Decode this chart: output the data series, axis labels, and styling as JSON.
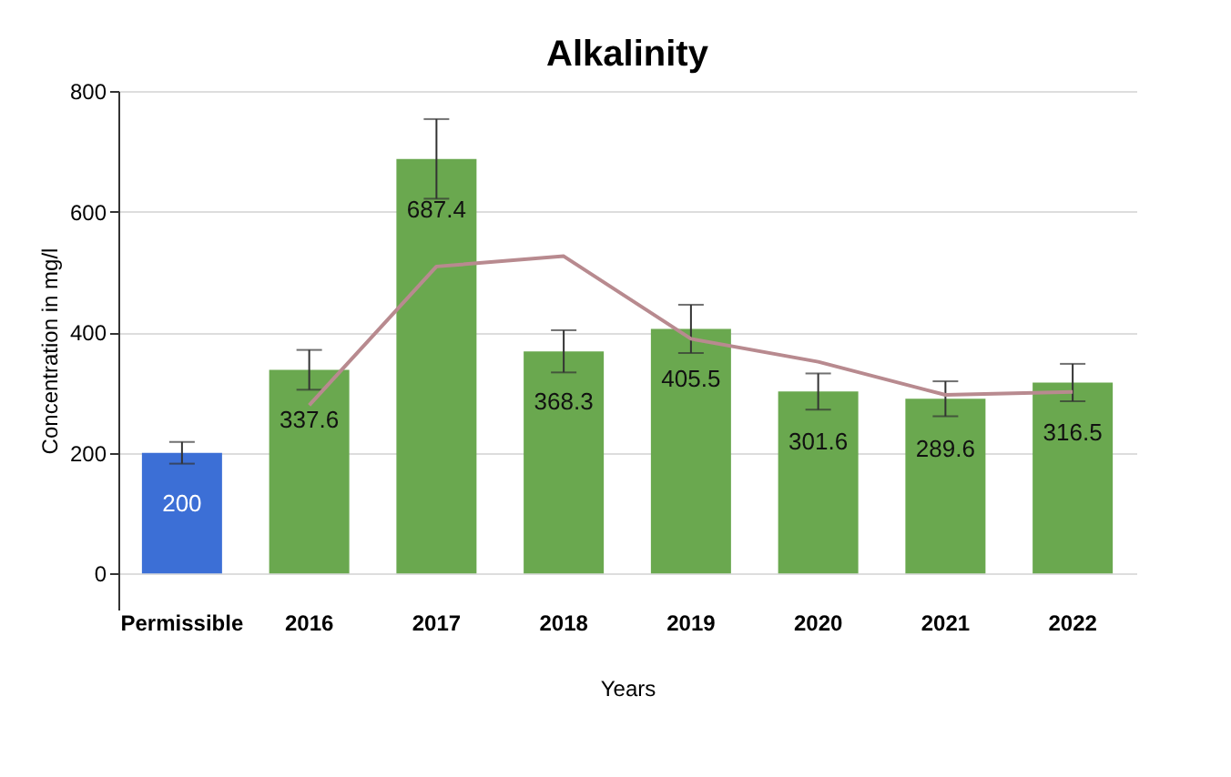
{
  "chart_data": {
    "type": "bar",
    "title": "Alkalinity",
    "xlabel": "Years",
    "ylabel": "Concentration in mg/l",
    "categories": [
      "Permissible",
      "2016",
      "2017",
      "2018",
      "2019",
      "2020",
      "2021",
      "2022"
    ],
    "ylim": [
      -60,
      800
    ],
    "yticks": [
      0,
      200,
      400,
      600,
      800
    ],
    "grid": "y",
    "series": [
      {
        "colors": [
          "#3c6fd6",
          "#6aa84f",
          "#6aa84f",
          "#6aa84f",
          "#6aa84f",
          "#6aa84f",
          "#6aa84f",
          "#6aa84f"
        ],
        "values": [
          200,
          337.6,
          687.4,
          368.3,
          405.5,
          301.6,
          289.6,
          316.5
        ],
        "errors": [
          18,
          33,
          66,
          35,
          40,
          30,
          29,
          31
        ],
        "value_labels": [
          "200",
          "337.6",
          "687.4",
          "368.3",
          "405.5",
          "301.6",
          "289.6",
          "316.5"
        ]
      },
      {
        "type": "line",
        "color": "#b88a8f",
        "values": [
          null,
          279,
          509,
          526,
          389,
          351,
          296,
          301
        ]
      }
    ]
  }
}
